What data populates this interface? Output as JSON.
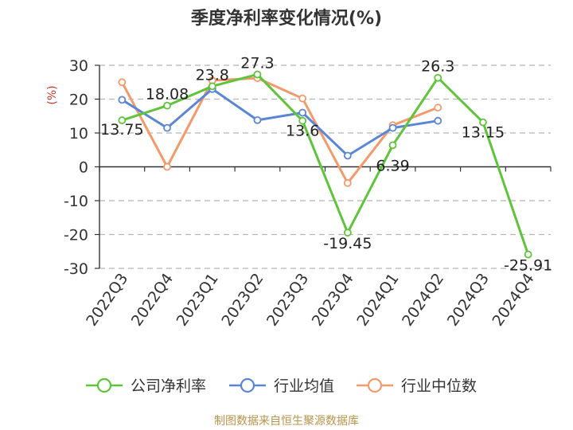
{
  "chart_data": {
    "type": "line",
    "title": "季度净利率变化情况(%)",
    "ylabel": "(%)",
    "xlabel": "",
    "ylim": [
      -30,
      30
    ],
    "yticks": [
      -30,
      -20,
      -10,
      0,
      10,
      20,
      30
    ],
    "grid": true,
    "legend_position": "bottom",
    "categories": [
      "2022Q3",
      "2022Q4",
      "2023Q1",
      "2023Q2",
      "2023Q3",
      "2023Q4",
      "2024Q1",
      "2024Q2",
      "2024Q3",
      "2024Q4"
    ],
    "series": [
      {
        "name": "公司净利率",
        "color": "#5ec43a",
        "values": [
          13.75,
          18.08,
          23.8,
          27.3,
          13.6,
          -19.45,
          6.39,
          26.3,
          13.15,
          -25.91
        ],
        "labels": [
          "13.75",
          "18.08",
          "23.8",
          "27.3",
          "13.6",
          "-19.45",
          "6.39",
          "26.3",
          "13.15",
          "-25.91"
        ]
      },
      {
        "name": "行业均值",
        "color": "#5b86d6",
        "values": [
          19.8,
          11.5,
          23.0,
          13.8,
          16.0,
          3.3,
          11.5,
          13.6,
          null,
          null
        ]
      },
      {
        "name": "行业中位数",
        "color": "#f39a6b",
        "values": [
          25.0,
          0.0,
          25.5,
          26.2,
          20.2,
          -4.8,
          12.3,
          17.5,
          null,
          null
        ]
      }
    ]
  },
  "footer": {
    "source": "制图数据来自恒生聚源数据库"
  }
}
